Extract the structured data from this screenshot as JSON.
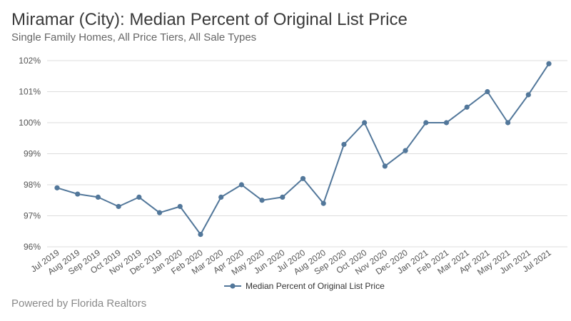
{
  "header": {
    "title": "Miramar (City): Median Percent of Original List Price",
    "subtitle": "Single Family Homes, All Price Tiers, All Sale Types"
  },
  "footer": {
    "text": "Powered by Florida Realtors"
  },
  "colors": {
    "series": "#52779a",
    "grid": "#dddddd"
  },
  "chart_data": {
    "type": "line",
    "title": "Miramar (City): Median Percent of Original List Price",
    "subtitle": "Single Family Homes, All Price Tiers, All Sale Types",
    "xlabel": "",
    "ylabel": "",
    "ylim": [
      96,
      102
    ],
    "yticks": [
      96,
      97,
      98,
      99,
      100,
      101,
      102
    ],
    "ytick_format": "%",
    "grid": true,
    "legend_position": "bottom-center",
    "categories": [
      "Jul 2019",
      "Aug 2019",
      "Sep 2019",
      "Oct 2019",
      "Nov 2019",
      "Dec 2019",
      "Jan 2020",
      "Feb 2020",
      "Mar 2020",
      "Apr 2020",
      "May 2020",
      "Jun 2020",
      "Jul 2020",
      "Aug 2020",
      "Sep 2020",
      "Oct 2020",
      "Nov 2020",
      "Dec 2020",
      "Jan 2021",
      "Feb 2021",
      "Mar 2021",
      "Apr 2021",
      "May 2021",
      "Jun 2021",
      "Jul 2021"
    ],
    "series": [
      {
        "name": "Median Percent of Original List Price",
        "values": [
          97.9,
          97.7,
          97.6,
          97.3,
          97.6,
          97.1,
          97.3,
          96.4,
          97.6,
          98.0,
          97.5,
          97.6,
          98.2,
          97.4,
          99.3,
          100.0,
          98.6,
          99.1,
          100.0,
          100.0,
          100.5,
          101.0,
          100.0,
          100.9,
          101.9
        ]
      }
    ]
  }
}
